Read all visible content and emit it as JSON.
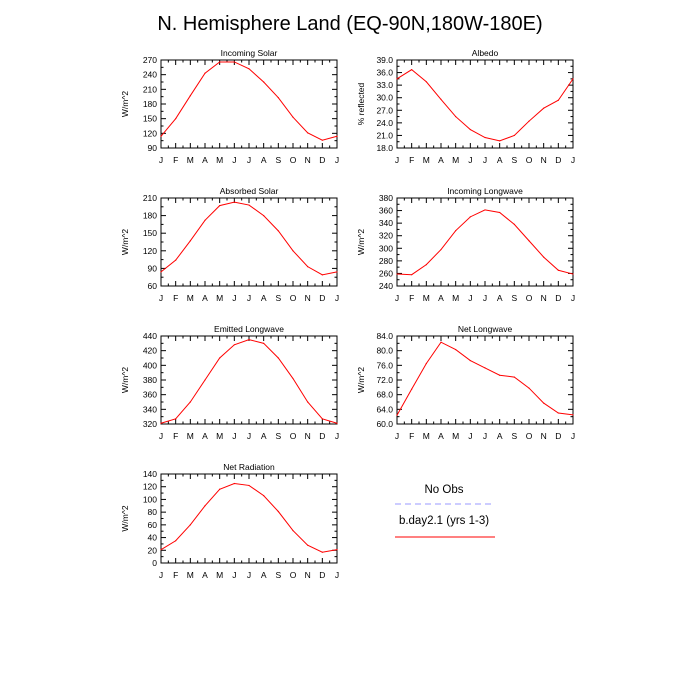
{
  "figure": {
    "title": "N. Hemisphere Land (EQ-90N,180W-180E)"
  },
  "months": [
    "J",
    "F",
    "M",
    "A",
    "M",
    "J",
    "J",
    "A",
    "S",
    "O",
    "N",
    "D",
    "J"
  ],
  "chart_data": [
    {
      "id": "incoming-solar",
      "type": "line",
      "title": "Incoming Solar",
      "ylabel": "W/m^2",
      "ylim": [
        90,
        270
      ],
      "yticks": [
        "90",
        "120",
        "150",
        "180",
        "210",
        "240",
        "270"
      ],
      "series": [
        {
          "name": "b.day2.1 (yrs 1-3)",
          "color": "#ff0000",
          "values": [
            114,
            150,
            197,
            243,
            266,
            266,
            252,
            225,
            193,
            153,
            121,
            106,
            114
          ]
        }
      ]
    },
    {
      "id": "albedo",
      "type": "line",
      "title": "Albedo",
      "ylabel": "% reflected",
      "ylim": [
        18,
        39
      ],
      "yticks": [
        "18.0",
        "21.0",
        "24.0",
        "27.0",
        "30.0",
        "33.0",
        "36.0",
        "39.0"
      ],
      "series": [
        {
          "name": "b.day2.1 (yrs 1-3)",
          "color": "#ff0000",
          "values": [
            34.5,
            36.7,
            33.8,
            29.6,
            25.5,
            22.4,
            20.5,
            19.7,
            21.0,
            24.4,
            27.5,
            29.4,
            34.5
          ]
        }
      ]
    },
    {
      "id": "absorbed-solar",
      "type": "line",
      "title": "Absorbed Solar",
      "ylabel": "W/m^2",
      "ylim": [
        60,
        210
      ],
      "yticks": [
        "60",
        "90",
        "120",
        "150",
        "180",
        "210"
      ],
      "series": [
        {
          "name": "b.day2.1 (yrs 1-3)",
          "color": "#ff0000",
          "values": [
            84,
            104,
            137,
            172,
            197,
            203,
            198,
            180,
            154,
            120,
            93,
            79,
            84
          ]
        }
      ]
    },
    {
      "id": "incoming-longwave",
      "type": "line",
      "title": "Incoming Longwave",
      "ylabel": "W/m^2",
      "ylim": [
        240,
        380
      ],
      "yticks": [
        "240",
        "260",
        "280",
        "300",
        "320",
        "340",
        "360",
        "380"
      ],
      "series": [
        {
          "name": "b.day2.1 (yrs 1-3)",
          "color": "#ff0000",
          "values": [
            259,
            258,
            274,
            298,
            328,
            350,
            361,
            357,
            338,
            312,
            286,
            265,
            259
          ]
        }
      ]
    },
    {
      "id": "emitted-longwave",
      "type": "line",
      "title": "Emitted Longwave",
      "ylabel": "W/m^2",
      "ylim": [
        320,
        440
      ],
      "yticks": [
        "320",
        "340",
        "360",
        "380",
        "400",
        "420",
        "440"
      ],
      "series": [
        {
          "name": "b.day2.1 (yrs 1-3)",
          "color": "#ff0000",
          "values": [
            321,
            327,
            350,
            380,
            410,
            428,
            435,
            430,
            410,
            382,
            350,
            327,
            321
          ]
        }
      ]
    },
    {
      "id": "net-longwave",
      "type": "line",
      "title": "Net Longwave",
      "ylabel": "W/m^2",
      "ylim": [
        60,
        84
      ],
      "yticks": [
        "60.0",
        "64.0",
        "68.0",
        "72.0",
        "76.0",
        "80.0",
        "84.0"
      ],
      "series": [
        {
          "name": "b.day2.1 (yrs 1-3)",
          "color": "#ff0000",
          "values": [
            62.4,
            69.5,
            76.5,
            82.3,
            80.3,
            77.3,
            75.3,
            73.3,
            72.8,
            69.8,
            65.7,
            63.0,
            62.5
          ]
        }
      ]
    },
    {
      "id": "net-radiation",
      "type": "line",
      "title": "Net Radiation",
      "ylabel": "W/m^2",
      "ylim": [
        0,
        140
      ],
      "yticks": [
        "0",
        "20",
        "40",
        "60",
        "80",
        "100",
        "120",
        "140"
      ],
      "series": [
        {
          "name": "b.day2.1 (yrs 1-3)",
          "color": "#ff0000",
          "values": [
            21,
            35,
            60,
            90,
            116,
            125,
            122,
            106,
            81,
            51,
            28,
            17,
            21
          ]
        }
      ]
    }
  ],
  "legend": {
    "items": [
      {
        "label": "No Obs",
        "color": "#9999ff",
        "dashed": true
      },
      {
        "label": "b.day2.1 (yrs 1-3)",
        "color": "#ff0000",
        "dashed": false
      }
    ]
  }
}
